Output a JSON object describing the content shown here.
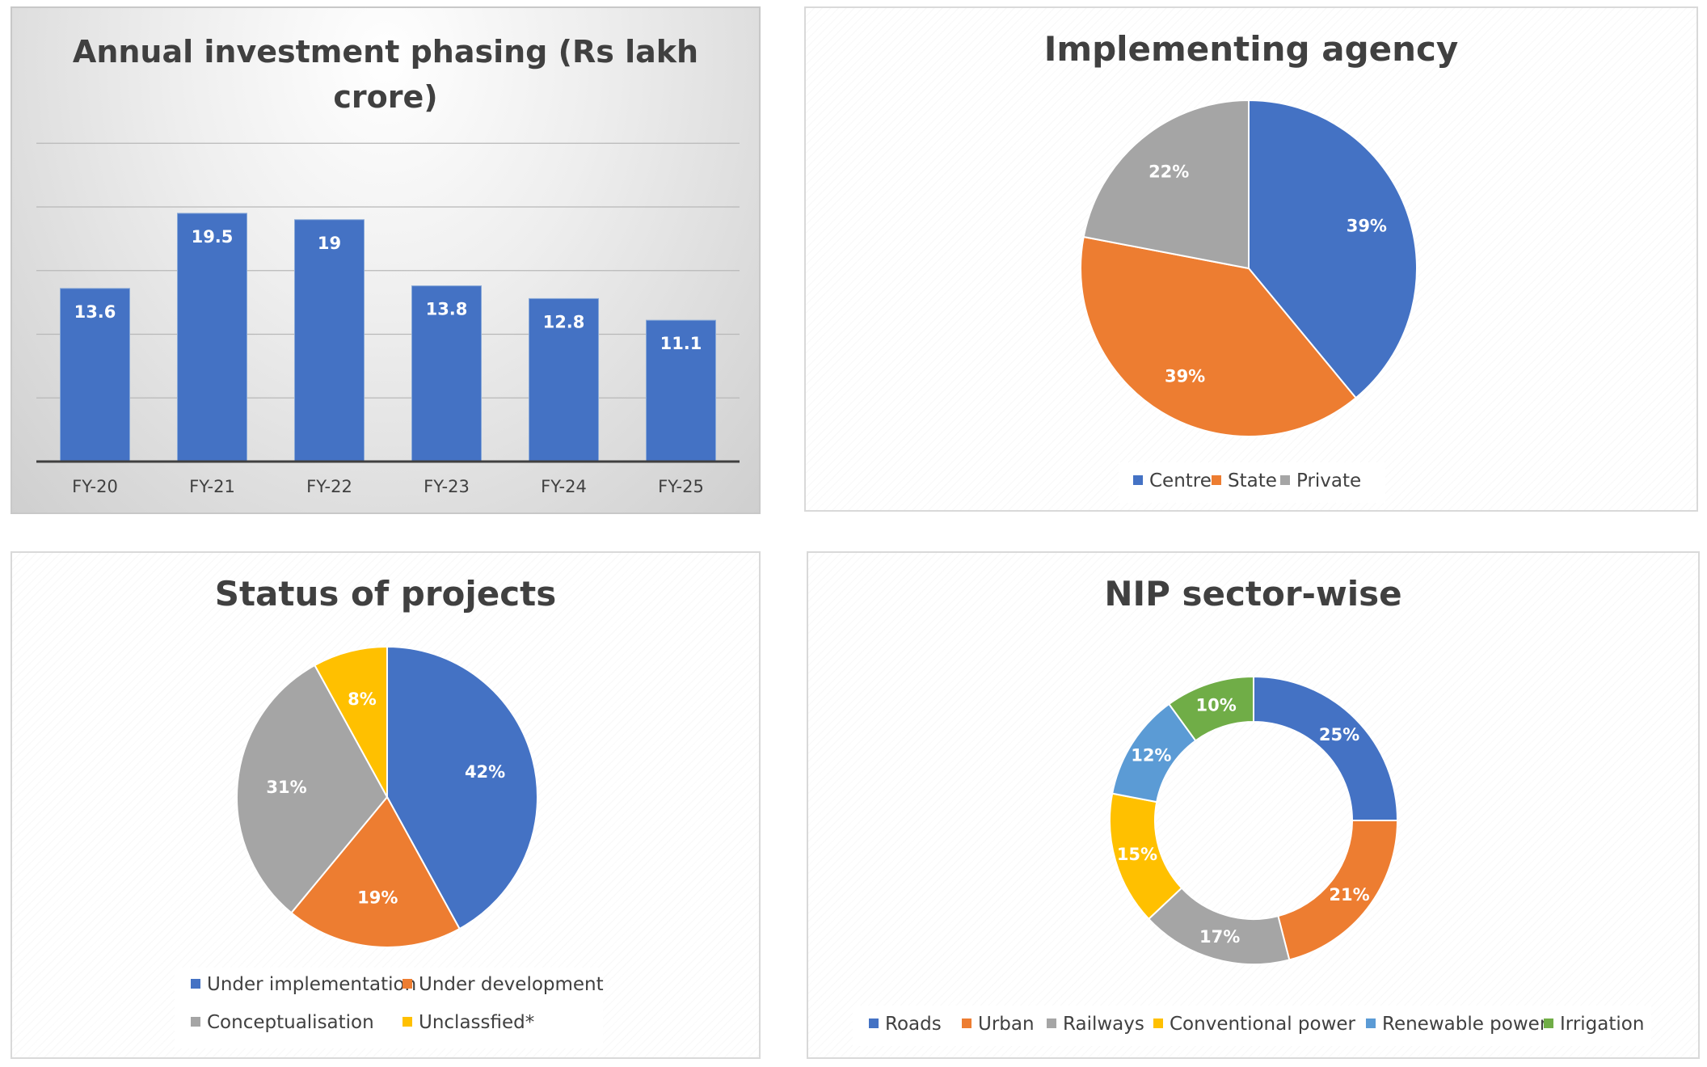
{
  "chart_data": [
    {
      "type": "bar",
      "title": "Annual investment phasing (Rs lakh crore)",
      "title_lines": [
        "Annual investment phasing (Rs lakh",
        "crore)"
      ],
      "categories": [
        "FY-20",
        "FY-21",
        "FY-22",
        "FY-23",
        "FY-24",
        "FY-25"
      ],
      "values": [
        13.6,
        19.5,
        19,
        13.8,
        12.8,
        11.1
      ],
      "value_labels": [
        "13.6",
        "19.5",
        "19",
        "13.8",
        "12.8",
        "11.1"
      ],
      "xlabel": "",
      "ylabel": "",
      "ylim": [
        0,
        25
      ],
      "grid": true,
      "colors": {
        "bar": "#4472C4"
      }
    },
    {
      "type": "pie",
      "title": "Implementing agency",
      "labels": [
        "Centre",
        "State",
        "Private"
      ],
      "values": [
        39,
        39,
        22
      ],
      "value_labels": [
        "39%",
        "39%",
        "22%"
      ],
      "colors": [
        "#4472C4",
        "#ED7D31",
        "#A5A5A5"
      ],
      "legend": "bottom"
    },
    {
      "type": "pie",
      "title": "Status of projects",
      "labels": [
        "Under implementation",
        "Under development",
        "Conceptualisation",
        "Unclassfied*"
      ],
      "values": [
        42,
        19,
        31,
        8
      ],
      "value_labels": [
        "42%",
        "19%",
        "31%",
        "8%"
      ],
      "colors": [
        "#4472C4",
        "#ED7D31",
        "#A5A5A5",
        "#FFC000"
      ],
      "legend": "bottom"
    },
    {
      "type": "pie",
      "subtype": "doughnut",
      "title": "NIP sector-wise",
      "labels": [
        "Roads",
        "Urban",
        "Railways",
        "Conventional power",
        "Renewable power",
        "Irrigation"
      ],
      "values": [
        25,
        21,
        17,
        15,
        12,
        10
      ],
      "value_labels": [
        "25%",
        "21%",
        "17%",
        "15%",
        "12%",
        "10%"
      ],
      "colors": [
        "#4472C4",
        "#ED7D31",
        "#A5A5A5",
        "#FFC000",
        "#5B9BD5",
        "#70AD47"
      ],
      "legend": "bottom"
    }
  ]
}
